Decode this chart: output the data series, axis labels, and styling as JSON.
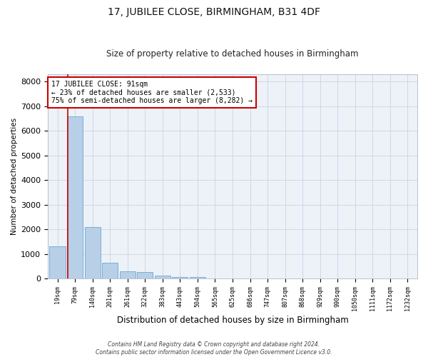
{
  "title1": "17, JUBILEE CLOSE, BIRMINGHAM, B31 4DF",
  "title2": "Size of property relative to detached houses in Birmingham",
  "xlabel": "Distribution of detached houses by size in Birmingham",
  "ylabel": "Number of detached properties",
  "bar_labels": [
    "19sqm",
    "79sqm",
    "140sqm",
    "201sqm",
    "261sqm",
    "322sqm",
    "383sqm",
    "443sqm",
    "504sqm",
    "565sqm",
    "625sqm",
    "686sqm",
    "747sqm",
    "807sqm",
    "868sqm",
    "929sqm",
    "990sqm",
    "1050sqm",
    "1111sqm",
    "1172sqm",
    "1232sqm"
  ],
  "bar_values": [
    1300,
    6600,
    2100,
    650,
    300,
    280,
    130,
    75,
    75,
    0,
    0,
    0,
    0,
    0,
    0,
    0,
    0,
    0,
    0,
    0,
    0
  ],
  "bar_color": "#b8cfe8",
  "bar_edge_color": "#7aafd4",
  "vline_x_index": 0.575,
  "vline_color": "#cc0000",
  "annotation_line1": "17 JUBILEE CLOSE: 91sqm",
  "annotation_line2": "← 23% of detached houses are smaller (2,533)",
  "annotation_line3": "75% of semi-detached houses are larger (8,282) →",
  "annotation_box_color": "#ffffff",
  "annotation_box_edge_color": "#cc0000",
  "ylim": [
    0,
    8300
  ],
  "yticks": [
    0,
    1000,
    2000,
    3000,
    4000,
    5000,
    6000,
    7000,
    8000
  ],
  "grid_color": "#c8d4e8",
  "bg_color": "#edf2f8",
  "footnote1": "Contains HM Land Registry data © Crown copyright and database right 2024.",
  "footnote2": "Contains public sector information licensed under the Open Government Licence v3.0."
}
